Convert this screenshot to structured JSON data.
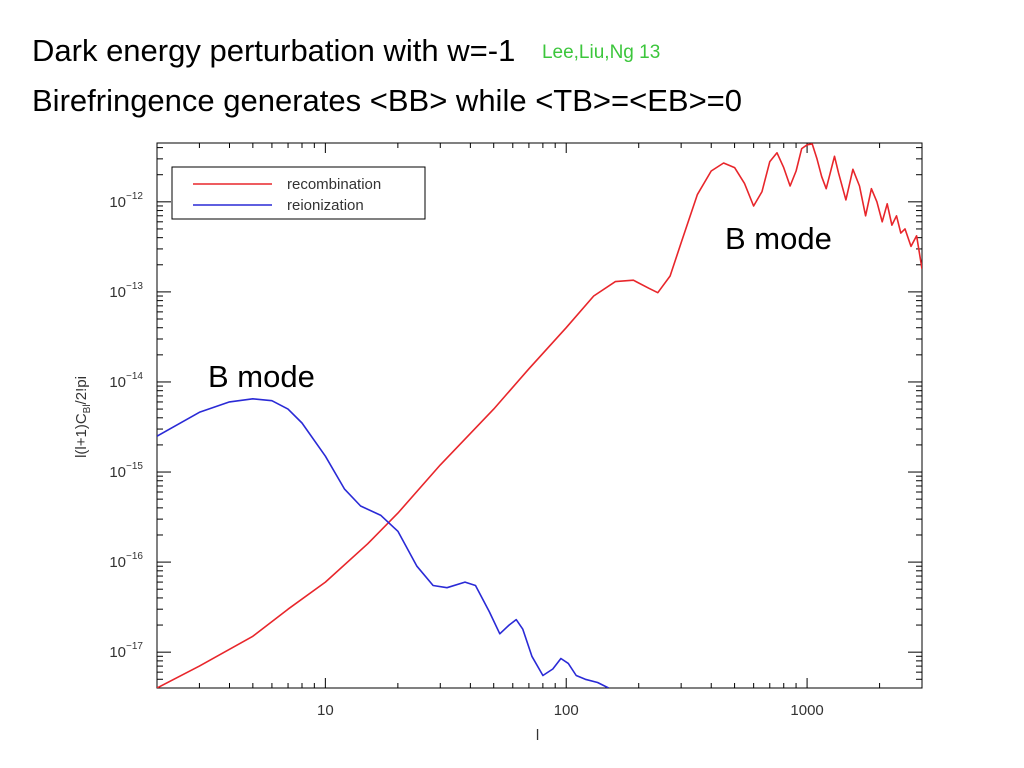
{
  "slide": {
    "title_line1": "Dark energy perturbation with w=-1",
    "citation": "Lee,Liu,Ng 13",
    "title_line2": "Birefringence generates <BB> while <TB>=<EB>=0"
  },
  "colors": {
    "recombination": "#e8262b",
    "reionization": "#2a2ad6",
    "citation": "#3cc63c",
    "axis": "#000000"
  },
  "chart_data": {
    "type": "line",
    "xscale": "log",
    "yscale": "log",
    "xlim": [
      2,
      3000
    ],
    "ylim": [
      4e-18,
      4.5e-12
    ],
    "xlabel": "l",
    "ylabel_main": "l(l+1)C",
    "ylabel_sub": "Bl",
    "ylabel_tail": "/2!pi",
    "x_ticks": [
      {
        "value": 10,
        "label": "10"
      },
      {
        "value": 100,
        "label": "100"
      },
      {
        "value": 1000,
        "label": "1000"
      }
    ],
    "y_ticks": [
      {
        "value": 1e-17,
        "base": "10",
        "exp": "−17"
      },
      {
        "value": 1e-16,
        "base": "10",
        "exp": "−16"
      },
      {
        "value": 1e-15,
        "base": "10",
        "exp": "−15"
      },
      {
        "value": 1e-14,
        "base": "10",
        "exp": "−14"
      },
      {
        "value": 1e-13,
        "base": "10",
        "exp": "−13"
      },
      {
        "value": 1e-12,
        "base": "10",
        "exp": "−12"
      }
    ],
    "legend_position": "top-left",
    "series": [
      {
        "name": "recombination",
        "color_key": "recombination",
        "points": [
          [
            2,
            4e-18
          ],
          [
            3,
            7e-18
          ],
          [
            5,
            1.5e-17
          ],
          [
            7,
            3e-17
          ],
          [
            10,
            6e-17
          ],
          [
            15,
            1.6e-16
          ],
          [
            20,
            3.5e-16
          ],
          [
            30,
            1.2e-15
          ],
          [
            50,
            5e-15
          ],
          [
            70,
            1.4e-14
          ],
          [
            100,
            4e-14
          ],
          [
            130,
            9e-14
          ],
          [
            160,
            1.3e-13
          ],
          [
            190,
            1.35e-13
          ],
          [
            220,
            1.1e-13
          ],
          [
            240,
            9.8e-14
          ],
          [
            270,
            1.5e-13
          ],
          [
            300,
            3.5e-13
          ],
          [
            350,
            1.2e-12
          ],
          [
            400,
            2.2e-12
          ],
          [
            450,
            2.7e-12
          ],
          [
            500,
            2.4e-12
          ],
          [
            550,
            1.6e-12
          ],
          [
            600,
            9e-13
          ],
          [
            650,
            1.3e-12
          ],
          [
            700,
            2.8e-12
          ],
          [
            750,
            3.5e-12
          ],
          [
            800,
            2.4e-12
          ],
          [
            850,
            1.5e-12
          ],
          [
            900,
            2.2e-12
          ],
          [
            950,
            3.9e-12
          ],
          [
            1000,
            4.3e-12
          ],
          [
            1050,
            4.4e-12
          ],
          [
            1100,
            3e-12
          ],
          [
            1150,
            1.9e-12
          ],
          [
            1200,
            1.4e-12
          ],
          [
            1300,
            3.2e-12
          ],
          [
            1350,
            2.1e-12
          ],
          [
            1450,
            1.05e-12
          ],
          [
            1550,
            2.3e-12
          ],
          [
            1650,
            1.5e-12
          ],
          [
            1750,
            7e-13
          ],
          [
            1850,
            1.4e-12
          ],
          [
            1950,
            1e-12
          ],
          [
            2050,
            6e-13
          ],
          [
            2150,
            9.5e-13
          ],
          [
            2250,
            5.5e-13
          ],
          [
            2350,
            7e-13
          ],
          [
            2450,
            4.5e-13
          ],
          [
            2550,
            5e-13
          ],
          [
            2700,
            3.2e-13
          ],
          [
            2850,
            4.2e-13
          ],
          [
            3000,
            1.8e-13
          ]
        ]
      },
      {
        "name": "reionization",
        "color_key": "reionization",
        "points": [
          [
            2,
            2.5e-15
          ],
          [
            3,
            4.6e-15
          ],
          [
            4,
            6e-15
          ],
          [
            5,
            6.5e-15
          ],
          [
            6,
            6.2e-15
          ],
          [
            7,
            5e-15
          ],
          [
            8,
            3.5e-15
          ],
          [
            10,
            1.5e-15
          ],
          [
            12,
            6.5e-16
          ],
          [
            14,
            4.2e-16
          ],
          [
            17,
            3.3e-16
          ],
          [
            20,
            2.2e-16
          ],
          [
            24,
            9e-17
          ],
          [
            28,
            5.5e-17
          ],
          [
            32,
            5.2e-17
          ],
          [
            38,
            6e-17
          ],
          [
            42,
            5.5e-17
          ],
          [
            48,
            2.8e-17
          ],
          [
            53,
            1.6e-17
          ],
          [
            58,
            2e-17
          ],
          [
            62,
            2.3e-17
          ],
          [
            66,
            1.8e-17
          ],
          [
            72,
            9e-18
          ],
          [
            80,
            5.5e-18
          ],
          [
            88,
            6.5e-18
          ],
          [
            95,
            8.5e-18
          ],
          [
            102,
            7.5e-18
          ],
          [
            110,
            5.5e-18
          ],
          [
            120,
            5e-18
          ],
          [
            135,
            4.6e-18
          ],
          [
            150,
            4e-18
          ]
        ]
      }
    ],
    "annotations": [
      {
        "text": "B mode",
        "x": 1000,
        "y": 1e-12
      },
      {
        "text": "B mode",
        "x": 7,
        "y": 2e-14
      }
    ]
  }
}
